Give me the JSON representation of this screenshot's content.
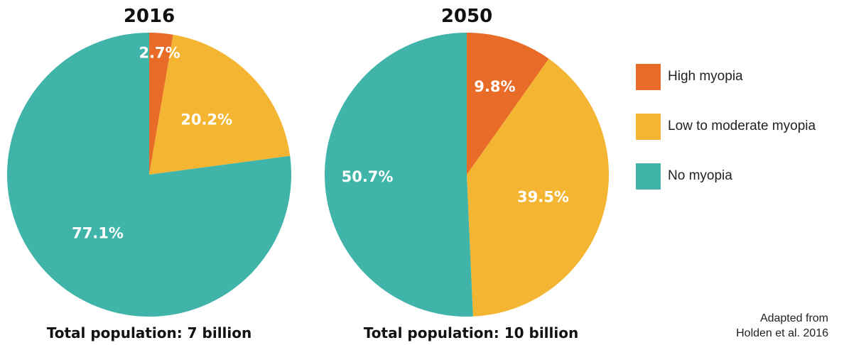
{
  "colors": {
    "high": "#E86B27",
    "low_moderate": "#F4B632",
    "none": "#40B4A9"
  },
  "chart_data": [
    {
      "type": "pie",
      "title": "2016",
      "subtitle": "Total population: 7 billion",
      "slices": [
        {
          "name": "High myopia",
          "value": 2.7,
          "label": "2.7%"
        },
        {
          "name": "Low to moderate myopia",
          "value": 20.2,
          "label": "20.2%"
        },
        {
          "name": "No myopia",
          "value": 77.1,
          "label": "77.1%"
        }
      ]
    },
    {
      "type": "pie",
      "title": "2050",
      "subtitle": "Total population: 10 billion",
      "slices": [
        {
          "name": "High myopia",
          "value": 9.8,
          "label": "9.8%"
        },
        {
          "name": "Low to moderate myopia",
          "value": 39.5,
          "label": "39.5%"
        },
        {
          "name": "No myopia",
          "value": 50.7,
          "label": "50.7%"
        }
      ]
    }
  ],
  "legend": [
    {
      "label": "High myopia",
      "color_key": "high"
    },
    {
      "label": "Low to moderate myopia",
      "color_key": "low_moderate"
    },
    {
      "label": "No myopia",
      "color_key": "none"
    }
  ],
  "source": {
    "line1": "Adapted from",
    "line2": "Holden et al. 2016"
  }
}
